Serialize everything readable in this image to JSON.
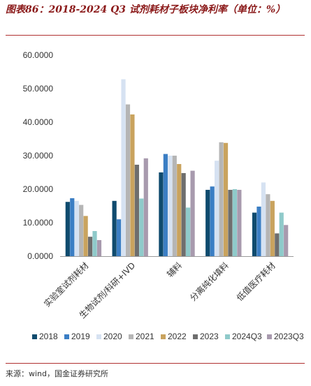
{
  "header": {
    "title": "图表86：2018-2024 Q3 试剂耗材子板块净利率（单位：%）"
  },
  "footer": {
    "source": "来源：wind，国金证券研究所"
  },
  "chart_data": {
    "type": "bar",
    "title": "图表86：2018-2024 Q3 试剂耗材子板块净利率（单位：%）",
    "xlabel": "",
    "ylabel": "",
    "ylim": [
      0,
      60
    ],
    "yticks": [
      0,
      10,
      20,
      30,
      40,
      50,
      60
    ],
    "ytick_labels": [
      "0.0000",
      "10.0000",
      "20.0000",
      "30.0000",
      "40.0000",
      "50.0000",
      "60.0000"
    ],
    "grid": false,
    "legend": "bottom",
    "categories": [
      "实验室试剂耗材",
      "生物试剂/科研+IVD",
      "辅料",
      "分离纯化填料",
      "低值医疗耗材"
    ],
    "series": [
      {
        "name": "2018",
        "color": "#0f4b6e",
        "values": [
          16.2,
          16.5,
          25.0,
          19.8,
          13.0
        ]
      },
      {
        "name": "2019",
        "color": "#3b7ec4",
        "values": [
          17.3,
          11.0,
          30.5,
          20.8,
          14.8
        ]
      },
      {
        "name": "2020",
        "color": "#d6e2f2",
        "values": [
          16.5,
          52.8,
          30.0,
          28.5,
          22.0
        ]
      },
      {
        "name": "2021",
        "color": "#b5b5b5",
        "values": [
          15.3,
          45.3,
          30.0,
          34.0,
          18.5
        ]
      },
      {
        "name": "2022",
        "color": "#c9a35e",
        "values": [
          12.0,
          42.3,
          27.5,
          33.8,
          16.5
        ]
      },
      {
        "name": "2023",
        "color": "#6e6e6e",
        "values": [
          5.8,
          27.3,
          24.8,
          19.8,
          6.8
        ]
      },
      {
        "name": "2024Q3",
        "color": "#8fcaca",
        "values": [
          7.5,
          17.2,
          14.5,
          20.0,
          13.0
        ]
      },
      {
        "name": "2023Q3",
        "color": "#a89aae",
        "values": [
          4.8,
          29.2,
          25.5,
          19.8,
          9.3
        ]
      }
    ]
  }
}
